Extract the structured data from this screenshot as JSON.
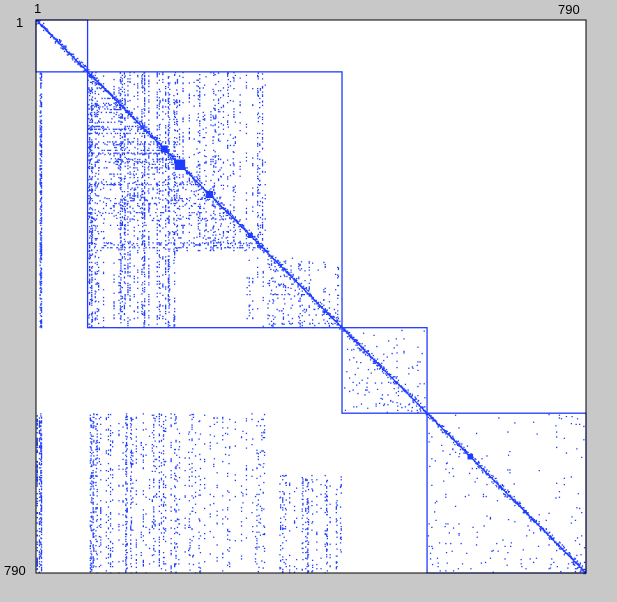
{
  "chart_data": {
    "type": "heatmap",
    "subtype": "sparse-matrix-spy-plot",
    "title": "",
    "xlabel": "",
    "ylabel": "",
    "x_tick_labels": [
      "1",
      "790"
    ],
    "y_tick_labels": [
      "1",
      "790"
    ],
    "matrix_size": 790,
    "grid": false,
    "colors": {
      "background": "#c8c8c8",
      "plot_area": "#ffffff",
      "nonzero": "#1e3cff",
      "blocks": "#1e3cff"
    },
    "blocks": [
      {
        "name": "block-1",
        "start": 1,
        "end": 75
      },
      {
        "name": "block-2",
        "start": 75,
        "end": 440
      },
      {
        "name": "block-3",
        "start": 440,
        "end": 562
      },
      {
        "name": "block-4",
        "start": 562,
        "end": 790
      }
    ],
    "dense_clusters": [
      {
        "row_range": [
          75,
          440
        ],
        "col_range": [
          1,
          10
        ],
        "density": 0.3
      },
      {
        "row_range": [
          75,
          440
        ],
        "col_range": [
          75,
          200
        ],
        "density": 0.15
      },
      {
        "row_range": [
          75,
          330
        ],
        "col_range": [
          200,
          330
        ],
        "density": 0.08
      },
      {
        "row_range": [
          340,
          440
        ],
        "col_range": [
          300,
          440
        ],
        "density": 0.06
      },
      {
        "row_range": [
          562,
          790
        ],
        "col_range": [
          1,
          10
        ],
        "density": 0.3
      },
      {
        "row_range": [
          562,
          790
        ],
        "col_range": [
          75,
          200
        ],
        "density": 0.12
      },
      {
        "row_range": [
          562,
          790
        ],
        "col_range": [
          200,
          330
        ],
        "density": 0.05
      },
      {
        "row_range": [
          650,
          790
        ],
        "col_range": [
          350,
          440
        ],
        "density": 0.1
      },
      {
        "row_range": [
          440,
          562
        ],
        "col_range": [
          440,
          562
        ],
        "density": 0.02
      },
      {
        "row_range": [
          562,
          790
        ],
        "col_range": [
          562,
          790
        ],
        "density": 0.01
      }
    ]
  }
}
